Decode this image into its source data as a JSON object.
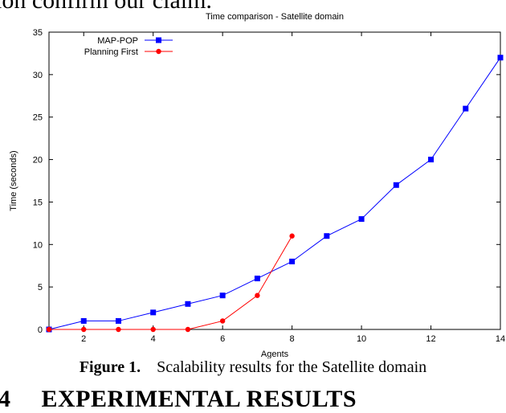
{
  "page": {
    "top_text": "ion confirm our claim.",
    "caption_label": "Figure 1.",
    "caption_text": "Scalability results for the Satellite domain",
    "section_number": "4",
    "section_title": "EXPERIMENTAL RESULTS"
  },
  "chart_data": {
    "type": "line",
    "title": "Time comparison - Satellite domain",
    "xlabel": "Agents",
    "ylabel": "Time (seconds)",
    "xlim": [
      1,
      14
    ],
    "ylim": [
      0,
      35
    ],
    "xticks": [
      2,
      4,
      6,
      8,
      10,
      12,
      14
    ],
    "yticks": [
      0,
      5,
      10,
      15,
      20,
      25,
      30,
      35
    ],
    "legend_position": "top-left",
    "series": [
      {
        "name": "MAP-POP",
        "color": "#0000ff",
        "marker": "square",
        "x": [
          1,
          2,
          3,
          4,
          5,
          6,
          7,
          8,
          9,
          10,
          11,
          12,
          13,
          14
        ],
        "y": [
          0,
          1,
          1,
          2,
          3,
          4,
          6,
          8,
          11,
          13,
          17,
          20,
          26,
          32
        ]
      },
      {
        "name": "Planning First",
        "color": "#ff0000",
        "marker": "circle",
        "x": [
          1,
          2,
          3,
          4,
          5,
          6,
          7,
          8
        ],
        "y": [
          0,
          0,
          0,
          0,
          0,
          1,
          4,
          11
        ]
      }
    ]
  }
}
